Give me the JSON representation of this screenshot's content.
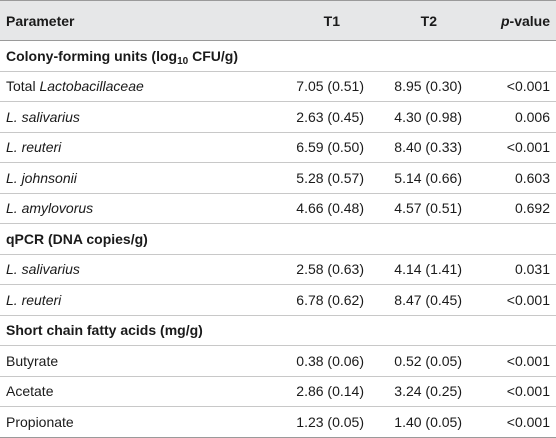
{
  "header": {
    "parameter": "Parameter",
    "t1": "T1",
    "t2": "T2",
    "pvalue_italic": "p",
    "pvalue_rest": "-value"
  },
  "sections": {
    "cfu": {
      "title_pre": "Colony-forming units (log",
      "title_sub": "10",
      "title_post": " CFU/g)",
      "rows": [
        {
          "prefix": "Total ",
          "name": "Lactobacillaceae",
          "t1": "7.05 (0.51)",
          "t2": "8.95 (0.30)",
          "p": "<0.001"
        },
        {
          "prefix": "",
          "name": "L. salivarius",
          "t1": "2.63 (0.45)",
          "t2": "4.30 (0.98)",
          "p": "0.006"
        },
        {
          "prefix": "",
          "name": "L. reuteri",
          "t1": "6.59 (0.50)",
          "t2": "8.40 (0.33)",
          "p": "<0.001"
        },
        {
          "prefix": "",
          "name": "L. johnsonii",
          "t1": "5.28 (0.57)",
          "t2": "5.14 (0.66)",
          "p": "0.603"
        },
        {
          "prefix": "",
          "name": "L. amylovorus",
          "t1": "4.66 (0.48)",
          "t2": "4.57 (0.51)",
          "p": "0.692"
        }
      ]
    },
    "qpcr": {
      "title": "qPCR (DNA copies/g)",
      "rows": [
        {
          "name": "L. salivarius",
          "t1": "2.58 (0.63)",
          "t2": "4.14 (1.41)",
          "p": "0.031"
        },
        {
          "name": "L. reuteri",
          "t1": "6.78 (0.62)",
          "t2": "8.47 (0.45)",
          "p": "<0.001"
        }
      ]
    },
    "scfa": {
      "title": "Short chain fatty acids (mg/g)",
      "rows": [
        {
          "name": "Butyrate",
          "t1": "0.38 (0.06)",
          "t2": "0.52 (0.05)",
          "p": "<0.001"
        },
        {
          "name": "Acetate",
          "t1": "2.86 (0.14)",
          "t2": "3.24 (0.25)",
          "p": "<0.001"
        },
        {
          "name": "Propionate",
          "t1": "1.23 (0.05)",
          "t2": "1.40 (0.05)",
          "p": "<0.001"
        }
      ]
    }
  },
  "colors": {
    "header_bg": "#e6e7e8",
    "rule": "#c8c8c8",
    "text": "#1a1a1a"
  }
}
